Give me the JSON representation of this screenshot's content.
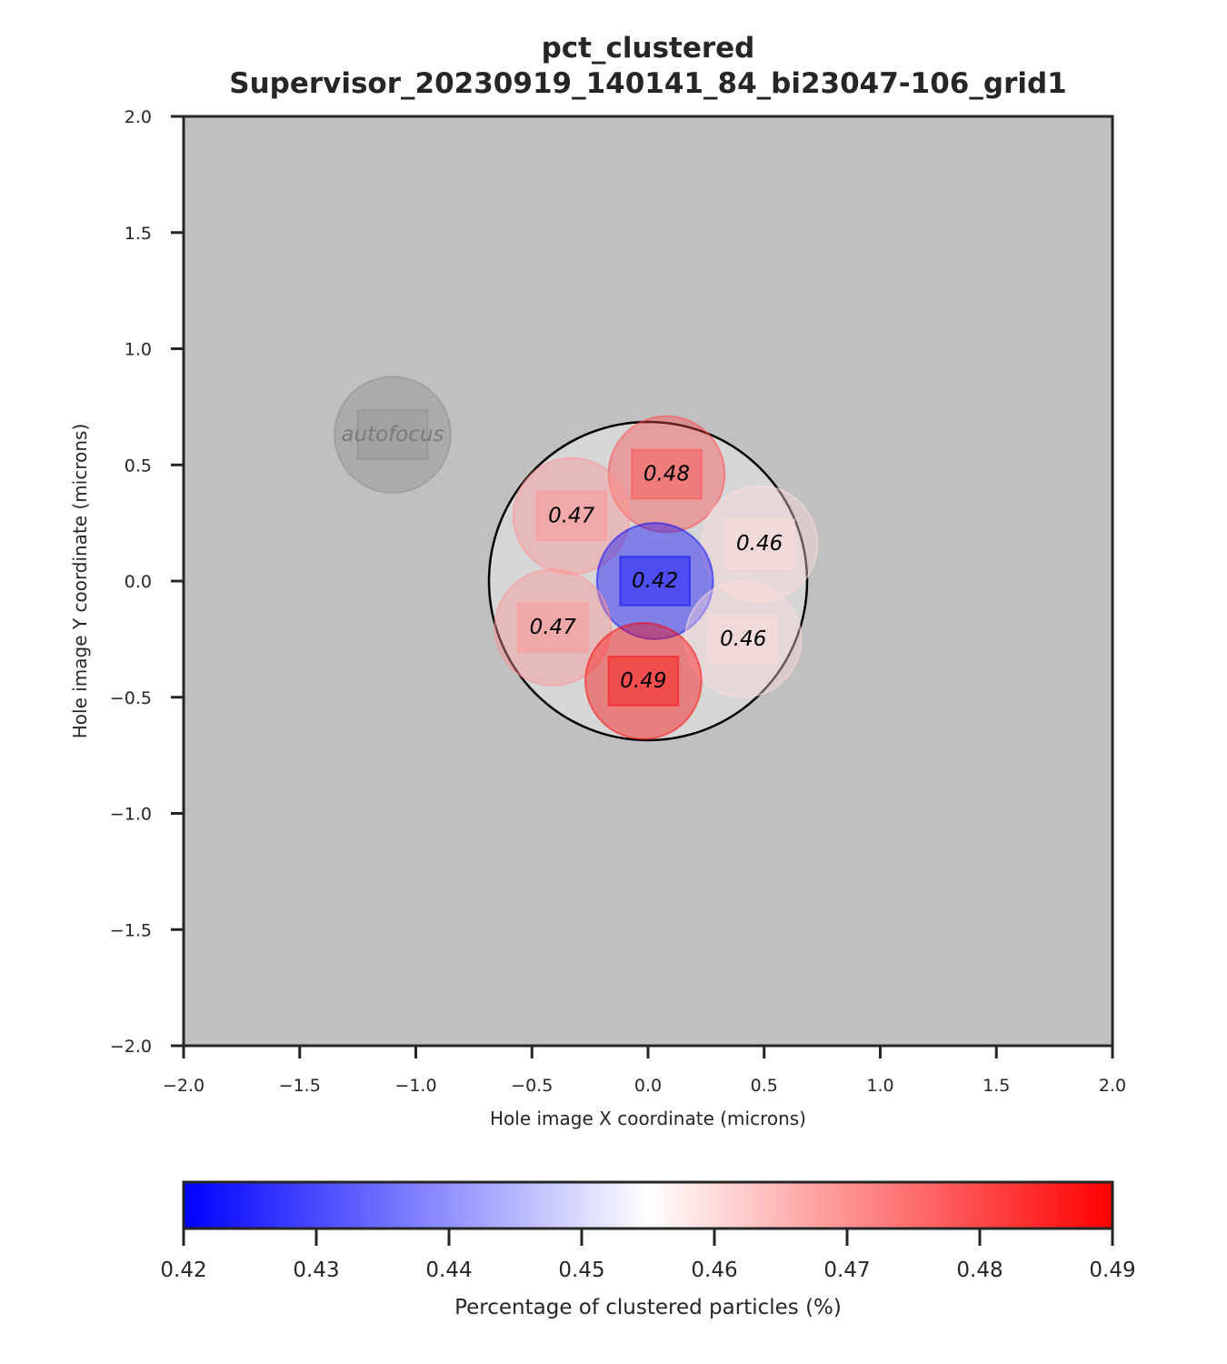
{
  "chart_data": {
    "type": "scatter",
    "title_line1": "pct_clustered",
    "title_line2": "Supervisor_20230919_140141_84_bi23047-106_grid1",
    "xlabel": "Hole image X coordinate (microns)",
    "ylabel": "Hole image Y coordinate (microns)",
    "xlim": [
      -2.0,
      2.0
    ],
    "ylim": [
      -2.0,
      2.0
    ],
    "xticks": [
      -2.0,
      -1.5,
      -1.0,
      -0.5,
      0.0,
      0.5,
      1.0,
      1.5,
      2.0
    ],
    "yticks": [
      -2.0,
      -1.5,
      -1.0,
      -0.5,
      0.0,
      0.5,
      1.0,
      1.5,
      2.0
    ],
    "xtick_labels": [
      "−2.0",
      "−1.5",
      "−1.0",
      "−0.5",
      "0.0",
      "0.5",
      "1.0",
      "1.5",
      "2.0"
    ],
    "ytick_labels": [
      "−2.0",
      "−1.5",
      "−1.0",
      "−0.5",
      "0.0",
      "0.5",
      "1.0",
      "1.5",
      "2.0"
    ],
    "background_color": "#c0c0c0",
    "hole": {
      "x": 0.0,
      "y": 0.0,
      "r": 0.685
    },
    "autofocus": {
      "x": -1.1,
      "y": 0.63,
      "label": "autofocus"
    },
    "points": [
      {
        "x": 0.08,
        "y": 0.46,
        "value": 0.48,
        "label": "0.48"
      },
      {
        "x": -0.33,
        "y": 0.28,
        "value": 0.47,
        "label": "0.47"
      },
      {
        "x": 0.48,
        "y": 0.16,
        "value": 0.46,
        "label": "0.46"
      },
      {
        "x": 0.03,
        "y": 0.0,
        "value": 0.42,
        "label": "0.42"
      },
      {
        "x": -0.41,
        "y": -0.2,
        "value": 0.47,
        "label": "0.47"
      },
      {
        "x": 0.41,
        "y": -0.25,
        "value": 0.46,
        "label": "0.46"
      },
      {
        "x": -0.02,
        "y": -0.43,
        "value": 0.49,
        "label": "0.49"
      }
    ],
    "colorbar": {
      "label": "Percentage of clustered particles (%)",
      "vmin": 0.42,
      "vmax": 0.49,
      "colormap": "bwr",
      "ticks": [
        0.42,
        0.43,
        0.44,
        0.45,
        0.46,
        0.47,
        0.48,
        0.49
      ],
      "tick_labels": [
        "0.42",
        "0.43",
        "0.44",
        "0.45",
        "0.46",
        "0.47",
        "0.48",
        "0.49"
      ]
    }
  }
}
